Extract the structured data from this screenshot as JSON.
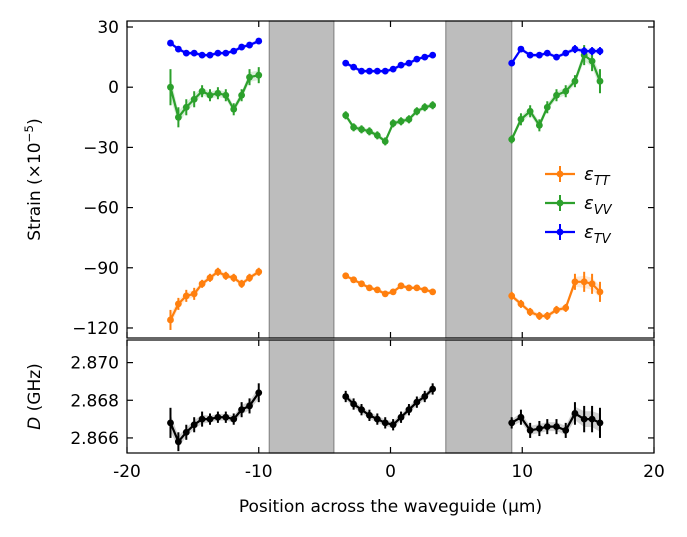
{
  "figure": {
    "xlabel": "Position across the waveguide (μm)"
  },
  "chart_data": [
    {
      "type": "line",
      "panel": "top",
      "ylabel_html": "Strain (×10<tspan baseline-shift='super' font-size='70%'>−5</tspan>)",
      "ylabel": "Strain (×10−5)",
      "xlim": [
        -20,
        20
      ],
      "ylim": [
        -125,
        33
      ],
      "yticks": [
        30,
        0,
        -30,
        -60,
        -90,
        -120
      ],
      "ytick_labels": [
        "30",
        "0",
        "−30",
        "−60",
        "−90",
        "−120"
      ],
      "grid": false,
      "legend_position": "right",
      "shaded_regions": [
        [
          -9.2,
          -4.3
        ],
        [
          4.2,
          9.2
        ]
      ],
      "series": [
        {
          "name": "εTT",
          "legend_main": "ε",
          "legend_sub": "TT",
          "color": "#ff7f0e",
          "segments": [
            {
              "x": [
                -16.7,
                -16.1,
                -15.5,
                -14.9,
                -14.3,
                -13.7,
                -13.1,
                -12.5,
                -11.9,
                -11.3,
                -10.7,
                -10.0
              ],
              "y": [
                -116,
                -108,
                -104,
                -103,
                -98,
                -95,
                -92,
                -94,
                -95,
                -98,
                -95,
                -92
              ],
              "err": [
                5,
                3,
                3,
                3,
                2,
                2,
                2,
                2,
                2,
                2,
                2,
                2
              ]
            },
            {
              "x": [
                -3.4,
                -2.8,
                -2.2,
                -1.6,
                -1.0,
                -0.4,
                0.2,
                0.8,
                1.4,
                2.0,
                2.6,
                3.2
              ],
              "y": [
                -94,
                -96,
                -98,
                -100,
                -101,
                -103,
                -102,
                -99,
                -100,
                -100,
                -101,
                -102
              ],
              "err": [
                1.5,
                1.5,
                1.5,
                1.5,
                1.5,
                1.5,
                1.5,
                1.5,
                1.5,
                1.5,
                1.5,
                1.5
              ]
            },
            {
              "x": [
                9.2,
                9.9,
                10.6,
                11.3,
                11.9,
                12.6,
                13.3,
                14.0,
                14.7,
                15.3,
                15.9
              ],
              "y": [
                -104,
                -108,
                -112,
                -114,
                -114,
                -111,
                -110,
                -97,
                -97,
                -98,
                -102
              ],
              "err": [
                2,
                2,
                2,
                2,
                2,
                2,
                2,
                4,
                5,
                5,
                5
              ]
            }
          ]
        },
        {
          "name": "εVV",
          "legend_main": "ε",
          "legend_sub": "VV",
          "color": "#2ca02c",
          "segments": [
            {
              "x": [
                -16.7,
                -16.1,
                -15.5,
                -14.9,
                -14.3,
                -13.7,
                -13.1,
                -12.5,
                -11.9,
                -11.3,
                -10.7,
                -10.0
              ],
              "y": [
                0,
                -15,
                -10,
                -6,
                -2,
                -4,
                -3,
                -4,
                -11,
                -4,
                5,
                6
              ],
              "err": [
                9,
                5,
                4,
                4,
                3,
                3,
                3,
                3,
                3,
                3,
                4,
                4
              ]
            },
            {
              "x": [
                -3.4,
                -2.8,
                -2.2,
                -1.6,
                -1.0,
                -0.4,
                0.2,
                0.8,
                1.4,
                2.0,
                2.6,
                3.2
              ],
              "y": [
                -14,
                -20,
                -21,
                -22,
                -24,
                -27,
                -18,
                -17,
                -16,
                -12,
                -10,
                -9
              ],
              "err": [
                2,
                2,
                2,
                2,
                2,
                2,
                2,
                2,
                2,
                2,
                2,
                2
              ]
            },
            {
              "x": [
                9.2,
                9.9,
                10.6,
                11.3,
                11.9,
                12.6,
                13.3,
                14.0,
                14.7,
                15.3,
                15.9
              ],
              "y": [
                -26,
                -16,
                -12,
                -19,
                -10,
                -4,
                -2,
                3,
                16,
                13,
                3
              ],
              "err": [
                2,
                3,
                3,
                3,
                3,
                3,
                3,
                3,
                5,
                5,
                6
              ]
            }
          ]
        },
        {
          "name": "εTV",
          "legend_main": "ε",
          "legend_sub": "TV",
          "color": "#0000ff",
          "segments": [
            {
              "x": [
                -16.7,
                -16.1,
                -15.5,
                -14.9,
                -14.3,
                -13.7,
                -13.1,
                -12.5,
                -11.9,
                -11.3,
                -10.7,
                -10.0
              ],
              "y": [
                22,
                19,
                17,
                17,
                16,
                16,
                17,
                17,
                18,
                20,
                21,
                23
              ],
              "err": [
                1.5,
                1.5,
                1.5,
                1.5,
                1.5,
                1.5,
                1.5,
                1.5,
                1.5,
                1.5,
                1.5,
                1.5
              ]
            },
            {
              "x": [
                -3.4,
                -2.8,
                -2.2,
                -1.6,
                -1.0,
                -0.4,
                0.2,
                0.8,
                1.4,
                2.0,
                2.6,
                3.2
              ],
              "y": [
                12,
                10,
                8,
                8,
                8,
                8,
                9,
                11,
                12,
                14,
                15,
                16
              ],
              "err": [
                1.5,
                1.5,
                1.5,
                1.5,
                1.5,
                1.5,
                1.5,
                1.5,
                1.5,
                1.5,
                1.5,
                1.5
              ]
            },
            {
              "x": [
                9.2,
                9.9,
                10.6,
                11.3,
                11.9,
                12.6,
                13.3,
                14.0,
                14.7,
                15.3,
                15.9
              ],
              "y": [
                12,
                19,
                16,
                16,
                17,
                15,
                17,
                19,
                18,
                18,
                18
              ],
              "err": [
                1.5,
                1.5,
                1.5,
                1.5,
                1.5,
                1.5,
                1.5,
                2,
                2,
                2,
                2
              ]
            }
          ]
        }
      ]
    },
    {
      "type": "line",
      "panel": "bottom",
      "ylabel_italic": "D",
      "ylabel_rest": " (GHz)",
      "xlim": [
        -20,
        20
      ],
      "ylim": [
        2.8652,
        2.8712
      ],
      "yticks": [
        2.87,
        2.868,
        2.866
      ],
      "ytick_labels": [
        "2.870",
        "2.868",
        "2.866"
      ],
      "xticks": [
        -20,
        -10,
        0,
        10,
        20
      ],
      "xtick_labels": [
        "-20",
        "-10",
        "0",
        "10",
        "20"
      ],
      "grid": false,
      "series": [
        {
          "name": "D",
          "color": "#000000",
          "segments": [
            {
              "x": [
                -16.7,
                -16.1,
                -15.5,
                -14.9,
                -14.3,
                -13.7,
                -13.1,
                -12.5,
                -11.9,
                -11.3,
                -10.7,
                -10.0
              ],
              "y": [
                2.8668,
                2.8658,
                2.8663,
                2.8667,
                2.867,
                2.867,
                2.8671,
                2.8671,
                2.867,
                2.8675,
                2.8677,
                2.8684
              ],
              "err": [
                0.0008,
                0.0005,
                0.0004,
                0.0004,
                0.0004,
                0.0003,
                0.0003,
                0.0003,
                0.0003,
                0.0004,
                0.0004,
                0.0005
              ]
            },
            {
              "x": [
                -3.4,
                -2.8,
                -2.2,
                -1.6,
                -1.0,
                -0.4,
                0.2,
                0.8,
                1.4,
                2.0,
                2.6,
                3.2
              ],
              "y": [
                2.8682,
                2.8678,
                2.8675,
                2.8672,
                2.867,
                2.8668,
                2.8667,
                2.8671,
                2.8675,
                2.8679,
                2.8682,
                2.8686
              ],
              "err": [
                0.0003,
                0.0003,
                0.0003,
                0.0003,
                0.0003,
                0.0003,
                0.0003,
                0.0003,
                0.0003,
                0.0003,
                0.0003,
                0.0003
              ]
            },
            {
              "x": [
                9.2,
                9.9,
                10.6,
                11.3,
                11.9,
                12.6,
                13.3,
                14.0,
                14.7,
                15.3,
                15.9
              ],
              "y": [
                2.8668,
                2.8671,
                2.8664,
                2.8665,
                2.8666,
                2.8666,
                2.8664,
                2.8673,
                2.867,
                2.867,
                2.8668
              ],
              "err": [
                0.0003,
                0.0004,
                0.0004,
                0.0004,
                0.0004,
                0.0004,
                0.0004,
                0.0006,
                0.0007,
                0.0007,
                0.0008
              ]
            }
          ]
        }
      ]
    }
  ]
}
